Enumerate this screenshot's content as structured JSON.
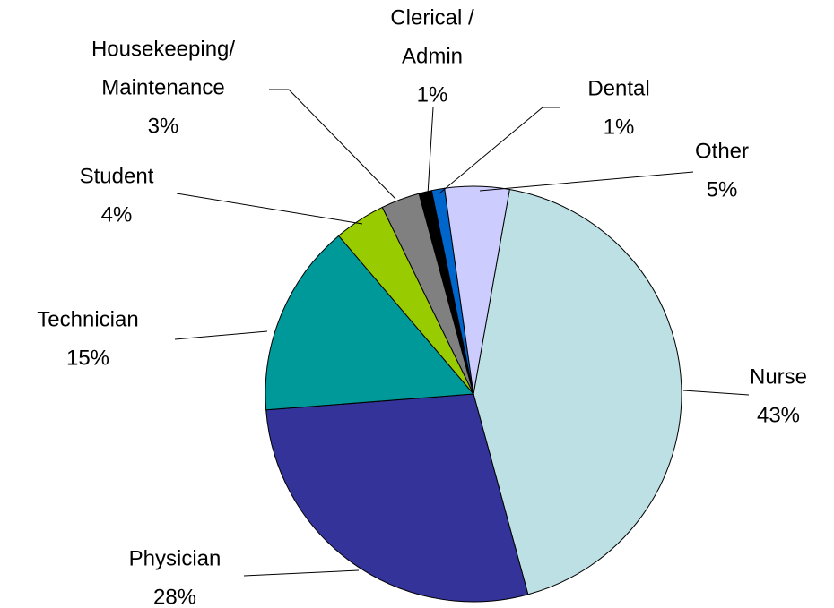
{
  "chart_data": {
    "type": "pie",
    "categories": [
      [
        "Nurse"
      ],
      [
        "Physician"
      ],
      [
        "Technician"
      ],
      [
        "Student"
      ],
      [
        "Housekeeping/",
        "Maintenance"
      ],
      [
        "Clerical /",
        "Admin"
      ],
      [
        "Dental"
      ],
      [
        "Other"
      ]
    ],
    "values": [
      43,
      28,
      15,
      4,
      3,
      1,
      1,
      5
    ],
    "value_labels": [
      "43%",
      "28%",
      "15%",
      "4%",
      "3%",
      "1%",
      "1%",
      "5%"
    ],
    "colors": [
      "#bce0e3",
      "#333399",
      "#009999",
      "#99cc00",
      "#808080",
      "#000000",
      "#0066cc",
      "#ccccff"
    ]
  }
}
